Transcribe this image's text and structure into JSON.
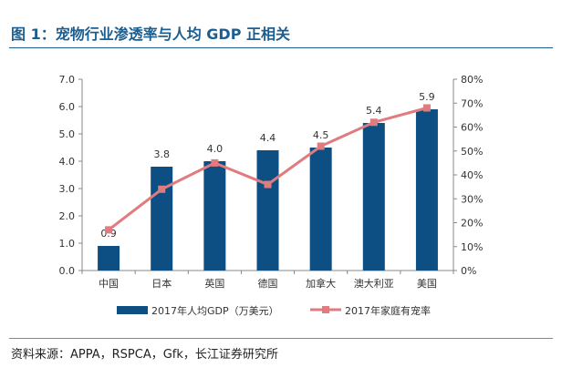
{
  "title": "图 1：宠物行业渗透率与人均 GDP 正相关",
  "source": "资料来源：APPA，RSPCA，Gfk，长江证券研究所",
  "colors": {
    "title": "#1b5e8f",
    "bar": "#0d4f82",
    "line": "#e07b7f"
  },
  "chart_data": {
    "type": "bar+line",
    "categories": [
      "中国",
      "日本",
      "英国",
      "德国",
      "加拿大",
      "澳大利亚",
      "美国"
    ],
    "series": [
      {
        "name": "2017年人均GDP（万美元）",
        "type": "bar",
        "axis": "left",
        "values": [
          0.9,
          3.8,
          4.0,
          4.4,
          4.5,
          5.4,
          5.9
        ],
        "data_labels": [
          "0.9",
          "3.8",
          "4.0",
          "4.4",
          "4.5",
          "5.4",
          "5.9"
        ]
      },
      {
        "name": "2017年家庭有宠率",
        "type": "line",
        "axis": "right",
        "values": [
          17,
          34,
          45,
          36,
          52,
          62,
          68
        ]
      }
    ],
    "left_axis": {
      "ylim": [
        0,
        7
      ],
      "ticks": [
        "0.0",
        "1.0",
        "2.0",
        "3.0",
        "4.0",
        "5.0",
        "6.0",
        "7.0"
      ]
    },
    "right_axis": {
      "ylim": [
        0,
        80
      ],
      "ticks": [
        "0%",
        "10%",
        "20%",
        "30%",
        "40%",
        "50%",
        "60%",
        "70%",
        "80%"
      ]
    },
    "grid": false,
    "legend": "bottom"
  }
}
